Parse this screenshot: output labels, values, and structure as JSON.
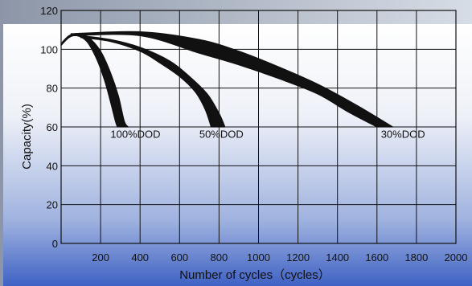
{
  "chart_data": {
    "type": "line",
    "title": "",
    "xlabel": "Number of cycles（cycles）",
    "ylabel": "Capacity(%)",
    "xlim": [
      0,
      2000
    ],
    "ylim": [
      0,
      120
    ],
    "xticks": [
      "200",
      "400",
      "600",
      "800",
      "1000",
      "1200",
      "1400",
      "1600",
      "1800",
      "2000"
    ],
    "xtick_values": [
      200,
      400,
      600,
      800,
      1000,
      1200,
      1400,
      1600,
      1800,
      2000
    ],
    "yticks": [
      "0",
      "20",
      "40",
      "60",
      "80",
      "100",
      "120"
    ],
    "ytick_values": [
      0,
      20,
      40,
      60,
      80,
      100,
      120
    ],
    "grid": true,
    "legend": "none",
    "series": [
      {
        "name": "100%DOD",
        "upper": [
          [
            0,
            103
          ],
          [
            40,
            107
          ],
          [
            80,
            108
          ],
          [
            140,
            106
          ],
          [
            200,
            99
          ],
          [
            250,
            88
          ],
          [
            290,
            76
          ],
          [
            320,
            63
          ],
          [
            340,
            60
          ]
        ],
        "lower": [
          [
            0,
            102
          ],
          [
            40,
            106
          ],
          [
            80,
            107
          ],
          [
            130,
            104
          ],
          [
            180,
            95
          ],
          [
            220,
            84
          ],
          [
            250,
            73
          ],
          [
            275,
            63
          ],
          [
            285,
            60
          ]
        ],
        "label_x": 250,
        "label_y": 56
      },
      {
        "name": "50%DOD",
        "upper": [
          [
            100,
            107
          ],
          [
            250,
            105
          ],
          [
            400,
            101
          ],
          [
            550,
            94
          ],
          [
            650,
            86
          ],
          [
            740,
            77
          ],
          [
            800,
            67
          ],
          [
            830,
            60
          ]
        ],
        "lower": [
          [
            100,
            106
          ],
          [
            250,
            104
          ],
          [
            400,
            99
          ],
          [
            500,
            93
          ],
          [
            600,
            86
          ],
          [
            680,
            78
          ],
          [
            730,
            69
          ],
          [
            760,
            60
          ]
        ],
        "label_x": 700,
        "label_y": 56
      },
      {
        "name": "30%DOD",
        "upper": [
          [
            50,
            108
          ],
          [
            400,
            109
          ],
          [
            700,
            105
          ],
          [
            900,
            99
          ],
          [
            1100,
            91
          ],
          [
            1300,
            82
          ],
          [
            1500,
            71
          ],
          [
            1680,
            60
          ]
        ],
        "lower": [
          [
            50,
            107
          ],
          [
            400,
            107
          ],
          [
            700,
            98
          ],
          [
            900,
            92
          ],
          [
            1100,
            85
          ],
          [
            1300,
            77
          ],
          [
            1450,
            68
          ],
          [
            1600,
            60
          ]
        ],
        "label_x": 1620,
        "label_y": 56
      }
    ]
  },
  "colors": {
    "background_top": "#ffffff",
    "background_mid": "#a8b8dc",
    "background_bottom": "#3f62c4",
    "curve": "#111111",
    "grid": "#111111"
  }
}
